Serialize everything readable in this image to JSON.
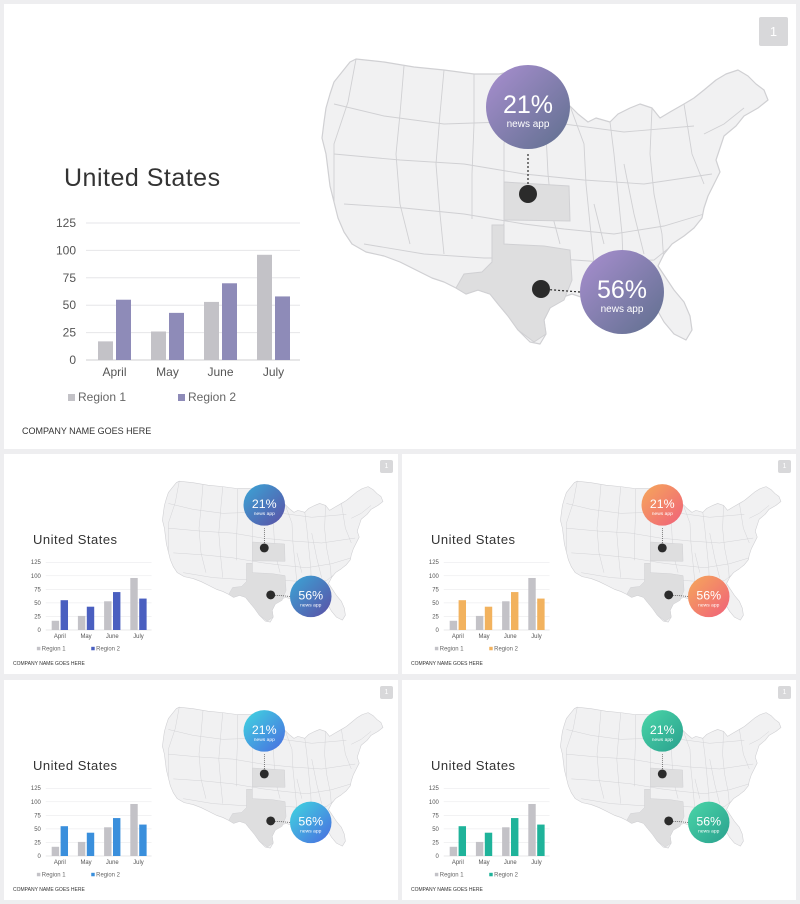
{
  "slides": [
    {
      "id": "main",
      "title": "United States",
      "company": "COMPANY NAME GOES HERE",
      "page": "1",
      "grad": [
        "#a98fd0",
        "#5f6f8e"
      ],
      "r2color": "#8e8bb8",
      "markers": [
        {
          "value": "21%",
          "label": "news app"
        },
        {
          "value": "56%",
          "label": "news app"
        }
      ]
    },
    {
      "id": "blue",
      "title": "United States",
      "company": "COMPANY NAME GOES HERE",
      "page": "1",
      "grad": [
        "#3aa6d6",
        "#5b4fa6"
      ],
      "r2color": "#4a5fc0",
      "markers": [
        {
          "value": "21%",
          "label": "news app"
        },
        {
          "value": "56%",
          "label": "news app"
        }
      ]
    },
    {
      "id": "orange",
      "title": "United States",
      "company": "COMPANY NAME GOES HERE",
      "page": "1",
      "grad": [
        "#f5a85a",
        "#f0607a"
      ],
      "r2color": "#f2b25e",
      "markers": [
        {
          "value": "21%",
          "label": "news app"
        },
        {
          "value": "56%",
          "label": "news app"
        }
      ]
    },
    {
      "id": "cyan",
      "title": "United States",
      "company": "COMPANY NAME GOES HERE",
      "page": "1",
      "grad": [
        "#3fd7e0",
        "#4a6be0"
      ],
      "r2color": "#3a8fdc",
      "markers": [
        {
          "value": "21%",
          "label": "news app"
        },
        {
          "value": "56%",
          "label": "news app"
        }
      ]
    },
    {
      "id": "teal",
      "title": "United States",
      "company": "COMPANY NAME GOES HERE",
      "page": "1",
      "grad": [
        "#4ad6a8",
        "#2aa08e"
      ],
      "r2color": "#1fb39a",
      "markers": [
        {
          "value": "21%",
          "label": "news app"
        },
        {
          "value": "56%",
          "label": "news app"
        }
      ]
    }
  ],
  "chart_data": {
    "type": "bar",
    "categories": [
      "April",
      "May",
      "June",
      "July"
    ],
    "series": [
      {
        "name": "Region 1",
        "values": [
          17,
          26,
          53,
          96
        ],
        "color": "#c3c2c7"
      },
      {
        "name": "Region 2",
        "values": [
          55,
          43,
          70,
          58
        ]
      }
    ],
    "yticks": [
      0,
      25,
      50,
      75,
      100,
      125
    ],
    "ylim": [
      0,
      125
    ],
    "grid": true,
    "legend": "bottom"
  },
  "map": {
    "highlight_color": "#dededf",
    "base_color": "#f1f1f2",
    "border_color": "#d0d0d3",
    "marker_color": "#2b2b2b"
  }
}
